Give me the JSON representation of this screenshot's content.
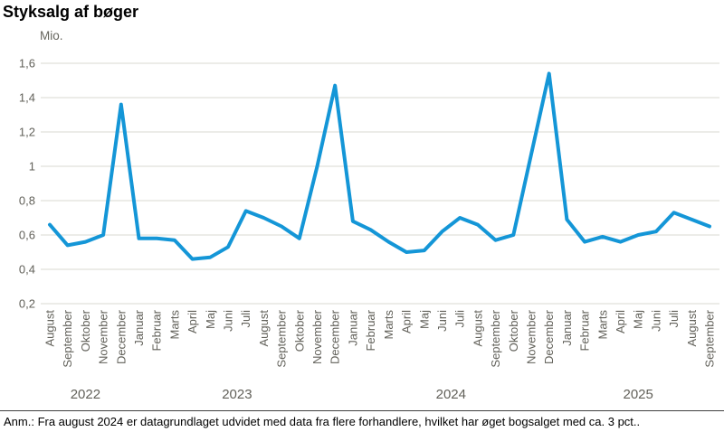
{
  "title": "Styksalg af bøger",
  "unit_label": "Mio.",
  "footnote": "Anm.: Fra august 2024 er datagrundlaget udvidet med data fra flere forhandlere, hvilket har øget bogsalget med ca. 3 pct..",
  "colors": {
    "line": "#1496d7",
    "grid": "#d9d9d2",
    "axis_text": "#62615a",
    "title_text": "#000000",
    "note_divider": "#3f3f3f"
  },
  "chart_data": {
    "type": "line",
    "title": "Styksalg af bøger",
    "ylabel": "Mio.",
    "xlabel": "",
    "ylim": [
      0.2,
      1.6
    ],
    "ytick_values": [
      0.2,
      0.4,
      0.6,
      0.8,
      1.0,
      1.2,
      1.4,
      1.6
    ],
    "ytick_labels": [
      "0,2",
      "0,4",
      "0,6",
      "0,8",
      "1",
      "1,2",
      "1,4",
      "1,6"
    ],
    "grid": "horizontal-only",
    "legend": "none",
    "categories": [
      "August",
      "September",
      "Oktober",
      "November",
      "December",
      "Januar",
      "Februar",
      "Marts",
      "April",
      "Maj",
      "Juni",
      "Juli",
      "August",
      "September",
      "Oktober",
      "November",
      "December",
      "Januar",
      "Februar",
      "Marts",
      "April",
      "Maj",
      "Juni",
      "Juli",
      "August",
      "September",
      "Oktober",
      "November",
      "December",
      "Januar",
      "Februar",
      "Marts",
      "April",
      "Maj",
      "Juni",
      "Juli",
      "August",
      "September"
    ],
    "year_groups": [
      {
        "label": "2022",
        "start_index": 0,
        "end_index": 4
      },
      {
        "label": "2023",
        "start_index": 5,
        "end_index": 16
      },
      {
        "label": "2024",
        "start_index": 17,
        "end_index": 28
      },
      {
        "label": "2025",
        "start_index": 29,
        "end_index": 37
      }
    ],
    "series": [
      {
        "name": "Styksalg af bøger (mio.)",
        "values": [
          0.66,
          0.54,
          0.56,
          0.6,
          1.36,
          0.58,
          0.58,
          0.57,
          0.46,
          0.47,
          0.53,
          0.74,
          0.7,
          0.65,
          0.58,
          1.0,
          1.47,
          0.68,
          0.63,
          0.56,
          0.5,
          0.51,
          0.62,
          0.7,
          0.66,
          0.57,
          0.6,
          1.07,
          1.54,
          0.69,
          0.56,
          0.59,
          0.56,
          0.6,
          0.62,
          0.73,
          0.69,
          0.65
        ]
      }
    ]
  }
}
